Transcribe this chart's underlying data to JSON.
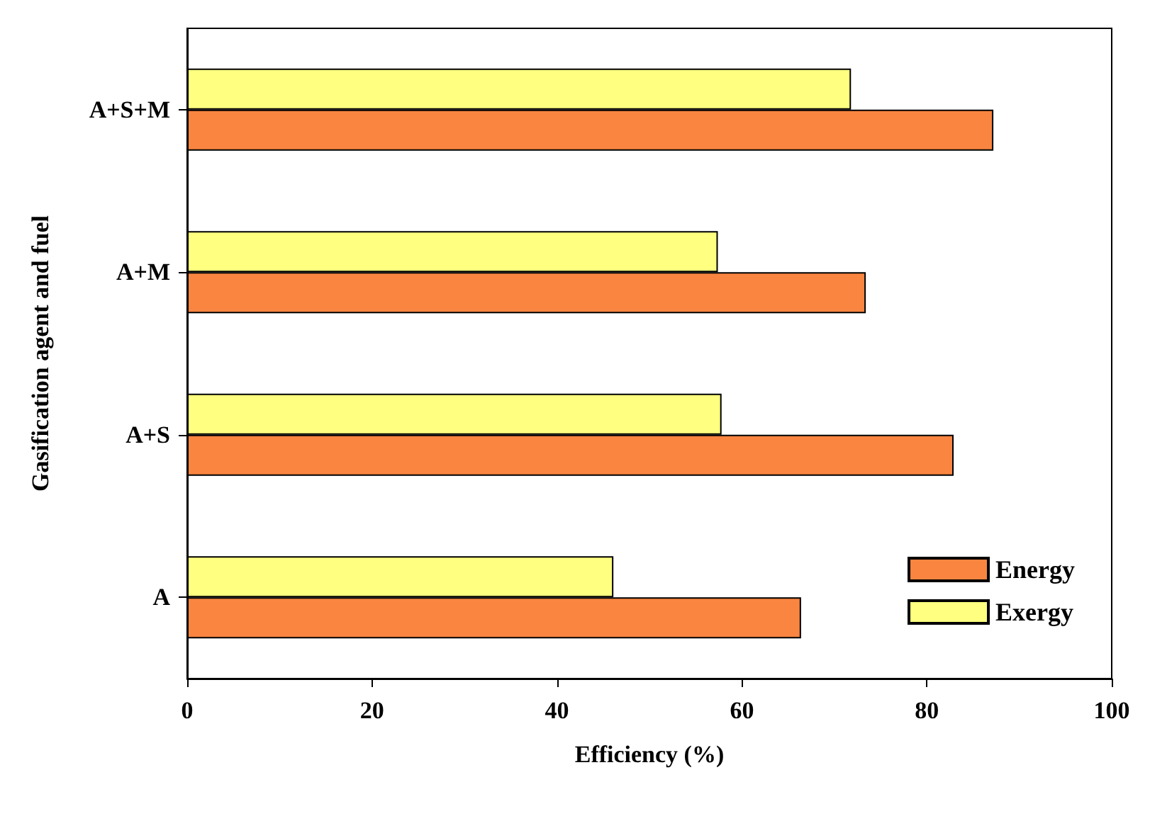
{
  "chart_data": {
    "type": "bar",
    "orientation": "horizontal",
    "xlabel": "Efficiency (%)",
    "ylabel": "Gasification agent and fuel",
    "categories": [
      "A+S+M",
      "A+M",
      "A+S",
      "A"
    ],
    "series": [
      {
        "name": "Energy",
        "color": "#f98540",
        "values": [
          87.2,
          73.4,
          82.9,
          66.4
        ]
      },
      {
        "name": "Exergy",
        "color": "#ffff80",
        "values": [
          71.8,
          57.4,
          57.8,
          46.1
        ]
      }
    ],
    "xlim": [
      0,
      100
    ],
    "xticks": [
      0,
      20,
      40,
      60,
      80,
      100
    ],
    "grid": false,
    "legend": "bottom right"
  }
}
